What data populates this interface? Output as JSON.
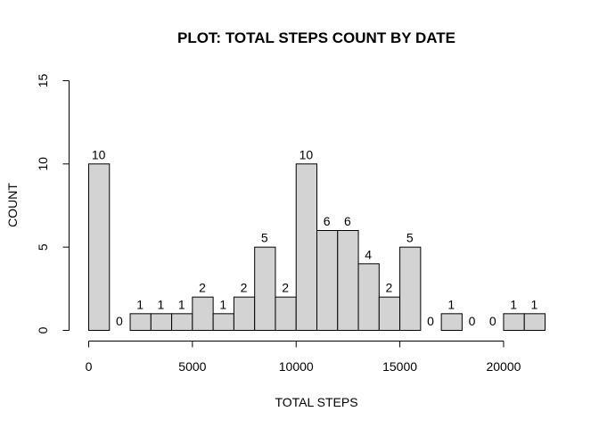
{
  "chart_data": {
    "type": "bar",
    "title": "PLOT: TOTAL STEPS COUNT BY DATE",
    "xlabel": "TOTAL STEPS",
    "ylabel": "COUNT",
    "bin_width": 1000,
    "bin_starts": [
      0,
      1000,
      2000,
      3000,
      4000,
      5000,
      6000,
      7000,
      8000,
      9000,
      10000,
      11000,
      12000,
      13000,
      14000,
      15000,
      16000,
      17000,
      18000,
      19000,
      20000,
      21000
    ],
    "values": [
      10,
      0,
      1,
      1,
      1,
      2,
      1,
      2,
      5,
      2,
      10,
      6,
      6,
      4,
      2,
      5,
      0,
      1,
      0,
      0,
      1,
      1
    ],
    "data_labels": [
      "10",
      "0",
      "1",
      "1",
      "1",
      "2",
      "1",
      "2",
      "5",
      "2",
      "10",
      "6",
      "6",
      "4",
      "2",
      "5",
      "0",
      "1",
      "0",
      "0",
      "1",
      "1"
    ],
    "xlim": [
      0,
      22000
    ],
    "ylim": [
      0,
      15
    ],
    "x_ticks": [
      0,
      5000,
      10000,
      15000,
      20000
    ],
    "x_tick_labels": [
      "0",
      "5000",
      "10000",
      "15000",
      "20000"
    ],
    "y_ticks": [
      0,
      5,
      10,
      15
    ],
    "y_tick_labels": [
      "0",
      "5",
      "10",
      "15"
    ],
    "bar_color": "#d3d3d3",
    "bar_border_color": "#000000",
    "grid": false,
    "legend": "none"
  }
}
